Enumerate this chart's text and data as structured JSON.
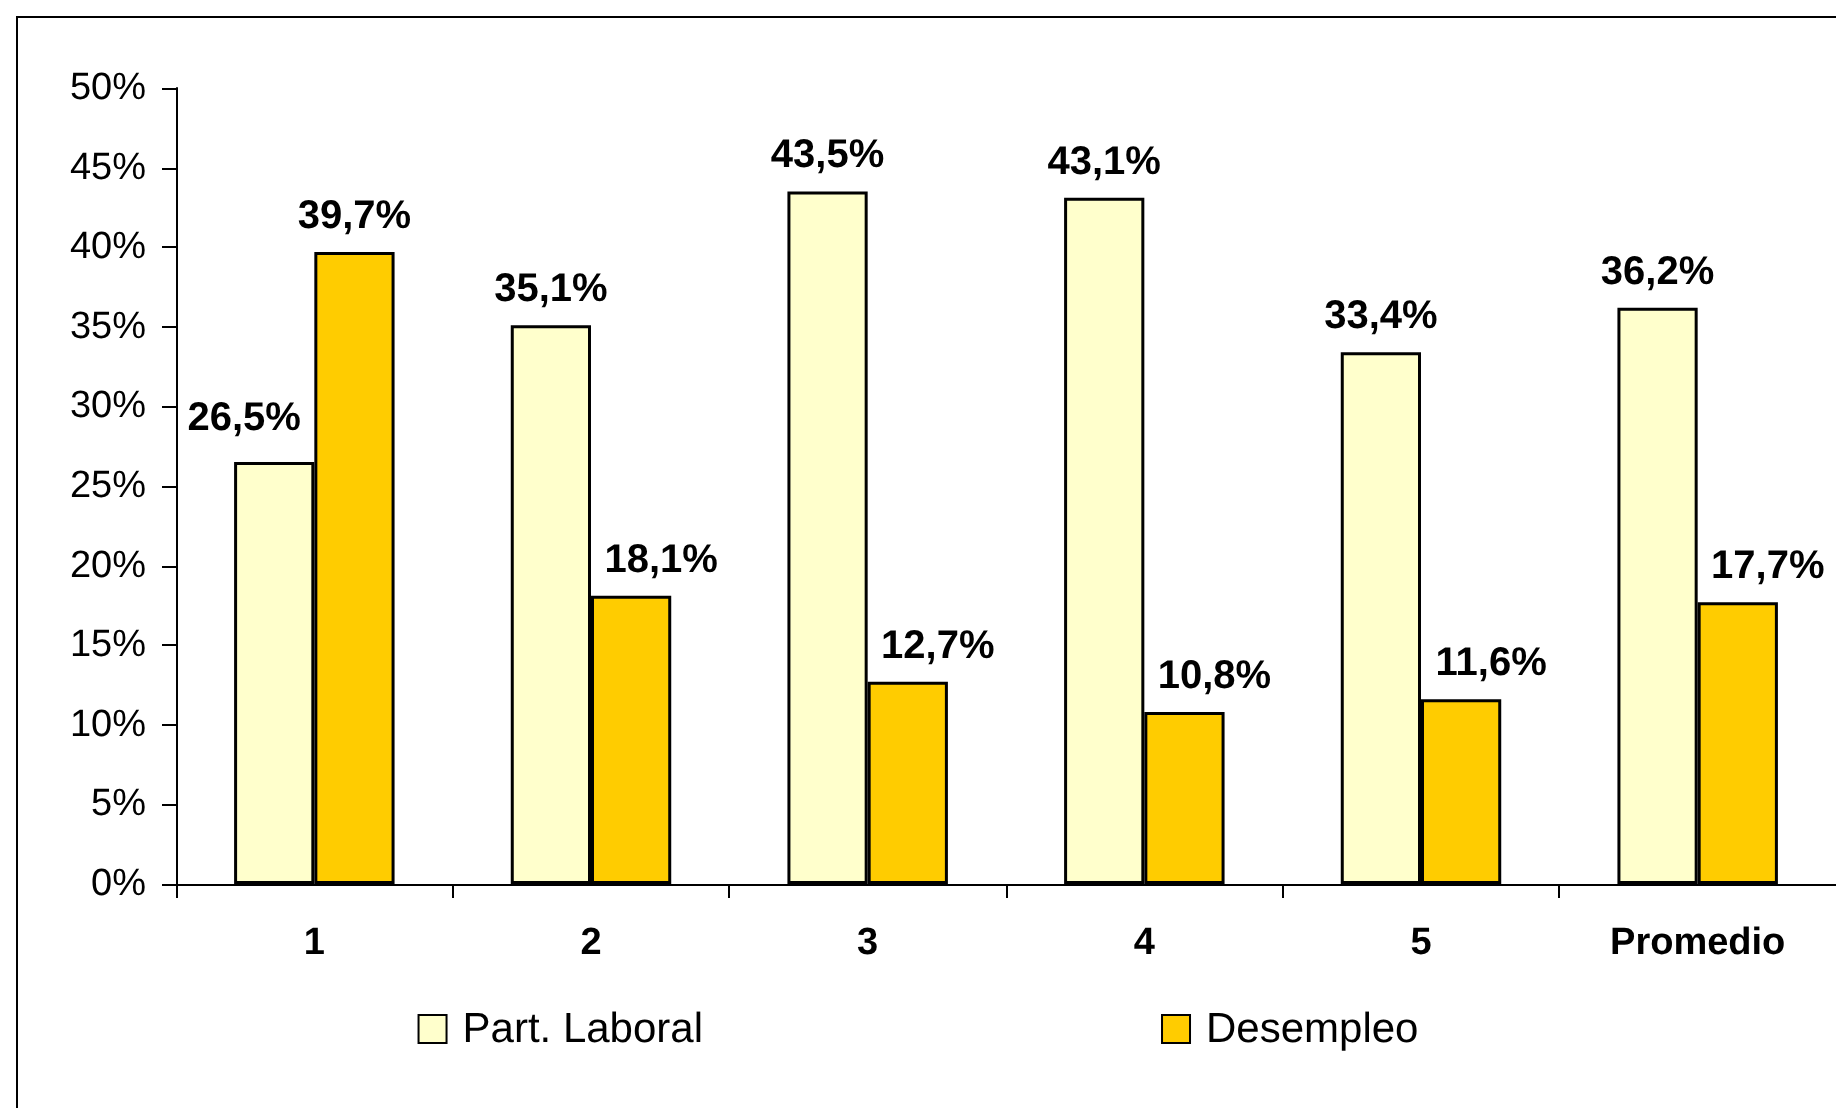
{
  "chart_data": {
    "type": "bar",
    "categories": [
      "1",
      "2",
      "3",
      "4",
      "5",
      "Promedio"
    ],
    "series": [
      {
        "name": "Part. Laboral",
        "color": "#ffffcc",
        "values": [
          26.5,
          35.1,
          43.5,
          43.1,
          33.4,
          36.2
        ],
        "value_labels": [
          "26,5%",
          "35,1%",
          "43,5%",
          "43,1%",
          "33,4%",
          "36,2%"
        ]
      },
      {
        "name": "Desempleo",
        "color": "#ffcc00",
        "values": [
          39.7,
          18.1,
          12.7,
          10.8,
          11.6,
          17.7
        ],
        "value_labels": [
          "39,7%",
          "18,1%",
          "12,7%",
          "10,8%",
          "11,6%",
          "17,7%"
        ]
      }
    ],
    "ylim": [
      0,
      50
    ],
    "yticks": [
      {
        "value": 0,
        "label": "0%"
      },
      {
        "value": 5,
        "label": "5%"
      },
      {
        "value": 10,
        "label": "10%"
      },
      {
        "value": 15,
        "label": "15%"
      },
      {
        "value": 20,
        "label": "20%"
      },
      {
        "value": 25,
        "label": "25%"
      },
      {
        "value": 30,
        "label": "30%"
      },
      {
        "value": 35,
        "label": "35%"
      },
      {
        "value": 40,
        "label": "40%"
      },
      {
        "value": 45,
        "label": "45%"
      },
      {
        "value": 50,
        "label": "50%"
      }
    ],
    "grid": false,
    "legend": "bottom"
  }
}
